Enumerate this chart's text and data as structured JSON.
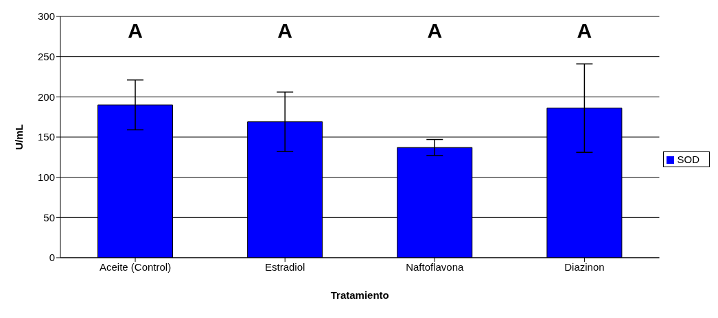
{
  "chart_data": {
    "type": "bar",
    "xlabel": "Tratamiento",
    "ylabel": "U/mL",
    "categories": [
      "Aceite (Control)",
      "Estradiol",
      "Naftoflavona",
      "Diazinon"
    ],
    "series": [
      {
        "name": "SOD",
        "color": "#0000ff",
        "values": [
          190,
          169,
          137,
          186
        ],
        "errors": [
          31,
          37,
          10,
          55
        ]
      }
    ],
    "ylim": [
      0,
      300
    ],
    "yticks": [
      0,
      50,
      100,
      150,
      200,
      250,
      300
    ],
    "grid": "y",
    "legend": "right",
    "annotations": [
      "A",
      "A",
      "A",
      "A"
    ]
  }
}
